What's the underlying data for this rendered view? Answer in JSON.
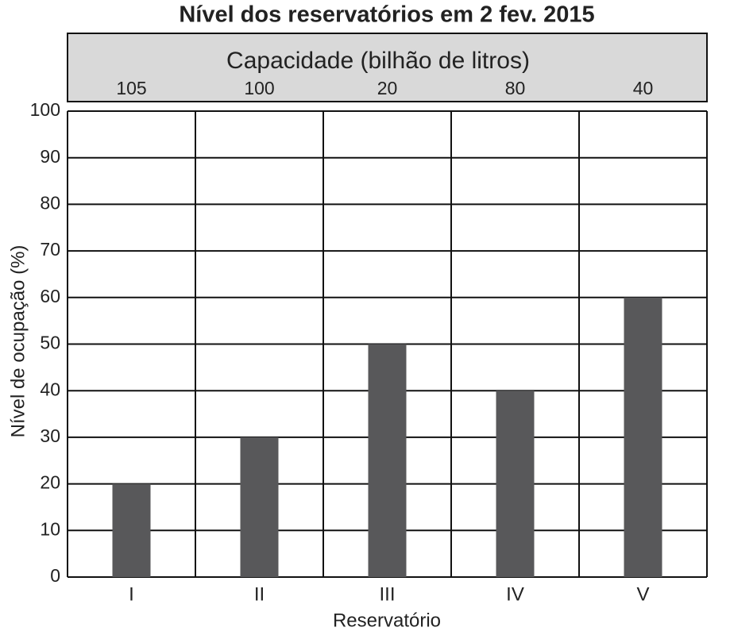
{
  "chart_data": {
    "type": "bar",
    "title": "Nível dos reservatórios em 2 fev. 2015",
    "capacity_title": "Capacidade (bilhão de litros)",
    "capacities": [
      105,
      100,
      20,
      80,
      40
    ],
    "categories": [
      "I",
      "II",
      "III",
      "IV",
      "V"
    ],
    "values": [
      20,
      30,
      50,
      40,
      60
    ],
    "color": "#58585a",
    "ylim": [
      0,
      100
    ],
    "yticks": [
      0,
      10,
      20,
      30,
      40,
      50,
      60,
      70,
      80,
      90,
      100
    ],
    "grid": true,
    "x_label": "Reservatório",
    "y_label": "Nível de ocupação (%)"
  }
}
